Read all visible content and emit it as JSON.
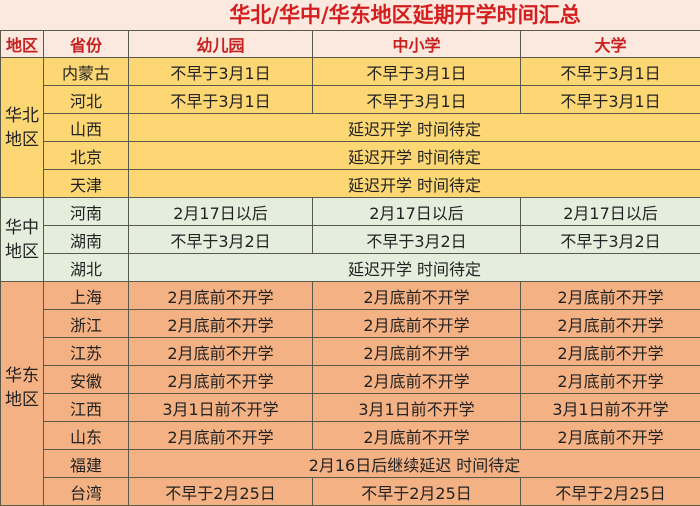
{
  "title": "华北/华中/华东地区延期开学时间汇总",
  "headers": [
    "地区",
    "省份",
    "幼儿园",
    "中小学",
    "大学"
  ],
  "colors": {
    "north": "#fcd774",
    "central": "#e5eedd",
    "east": "#f4b183",
    "title_text": "#d41e1e"
  },
  "regions": [
    {
      "name": "华北地区",
      "rows": [
        {
          "province": "内蒙古",
          "kindergarten": "不早于3月1日",
          "school": "不早于3月1日",
          "university": "不早于3月1日"
        },
        {
          "province": "河北",
          "kindergarten": "不早于3月1日",
          "school": "不早于3月1日",
          "university": "不早于3月1日"
        },
        {
          "province": "山西",
          "merged": "延迟开学 时间待定"
        },
        {
          "province": "北京",
          "merged": "延迟开学 时间待定"
        },
        {
          "province": "天津",
          "merged": "延迟开学 时间待定"
        }
      ]
    },
    {
      "name": "华中地区",
      "rows": [
        {
          "province": "河南",
          "kindergarten": "2月17日以后",
          "school": "2月17日以后",
          "university": "2月17日以后"
        },
        {
          "province": "湖南",
          "kindergarten": "不早于3月2日",
          "school": "不早于3月2日",
          "university": "不早于3月2日"
        },
        {
          "province": "湖北",
          "merged": "延迟开学 时间待定"
        }
      ]
    },
    {
      "name": "华东地区",
      "rows": [
        {
          "province": "上海",
          "kindergarten": "2月底前不开学",
          "school": "2月底前不开学",
          "university": "2月底前不开学"
        },
        {
          "province": "浙江",
          "kindergarten": "2月底前不开学",
          "school": "2月底前不开学",
          "university": "2月底前不开学"
        },
        {
          "province": "江苏",
          "kindergarten": "2月底前不开学",
          "school": "2月底前不开学",
          "university": "2月底前不开学"
        },
        {
          "province": "安徽",
          "kindergarten": "2月底前不开学",
          "school": "2月底前不开学",
          "university": "2月底前不开学"
        },
        {
          "province": "江西",
          "kindergarten": "3月1日前不开学",
          "school": "3月1日前不开学",
          "university": "3月1日前不开学"
        },
        {
          "province": "山东",
          "kindergarten": "2月底前不开学",
          "school": "2月底前不开学",
          "university": "2月底前不开学"
        },
        {
          "province": "福建",
          "merged": "2月16日后继续延迟 时间待定"
        },
        {
          "province": "台湾",
          "kindergarten": "不早于2月25日",
          "school": "不早于2月25日",
          "university": "不早于2月25日"
        }
      ]
    }
  ]
}
